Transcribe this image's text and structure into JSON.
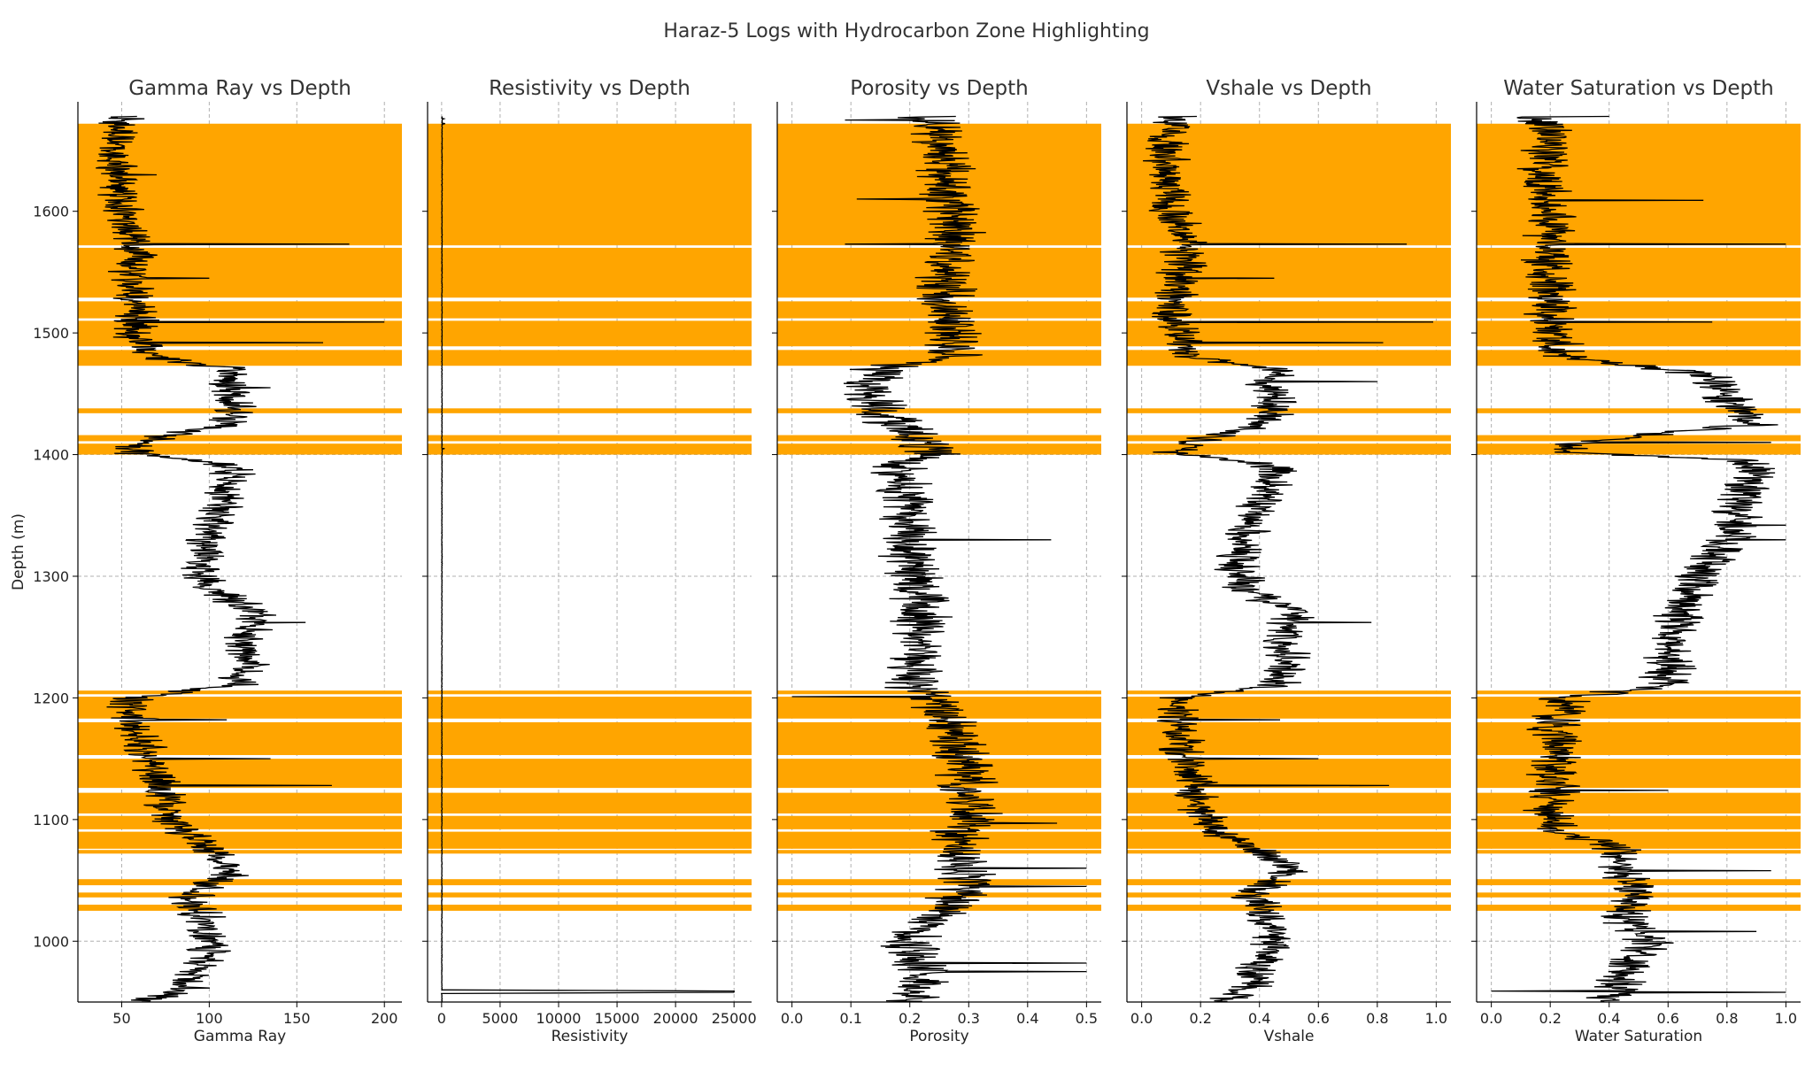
{
  "chart_data": {
    "type": "line",
    "title": "Haraz-5 Logs with Hydrocarbon Zone Highlighting",
    "ylabel": "Depth (m)",
    "ylim": [
      950,
      1690
    ],
    "yticks": [
      1000,
      1100,
      1200,
      1300,
      1400,
      1500,
      1600
    ],
    "highlight_color": "#FFA500",
    "line_color": "#000000",
    "grid": true,
    "hydrocarbon_zones": [
      [
        1572,
        1672
      ],
      [
        1529,
        1570
      ],
      [
        1512,
        1526
      ],
      [
        1489,
        1510
      ],
      [
        1473,
        1486
      ],
      [
        1434,
        1438
      ],
      [
        1411,
        1416
      ],
      [
        1400,
        1409
      ],
      [
        1203,
        1206
      ],
      [
        1183,
        1201
      ],
      [
        1153,
        1180
      ],
      [
        1126,
        1150
      ],
      [
        1105,
        1122
      ],
      [
        1092,
        1103
      ],
      [
        1076,
        1090
      ],
      [
        1072,
        1075
      ],
      [
        1046,
        1051
      ],
      [
        1036,
        1040
      ],
      [
        1025,
        1030
      ]
    ],
    "panels": [
      {
        "title": "Gamma Ray vs Depth",
        "xlabel": "Gamma Ray",
        "xlim": [
          25,
          210
        ],
        "xticks": [
          50,
          100,
          150,
          200
        ],
        "xtick_labels": [
          "50",
          "100",
          "150",
          "200"
        ],
        "profile": [
          [
            950,
            60
          ],
          [
            960,
            85
          ],
          [
            980,
            95
          ],
          [
            1000,
            100
          ],
          [
            1020,
            95
          ],
          [
            1040,
            90
          ],
          [
            1060,
            115
          ],
          [
            1075,
            100
          ],
          [
            1090,
            85
          ],
          [
            1110,
            75
          ],
          [
            1130,
            72
          ],
          [
            1150,
            65
          ],
          [
            1175,
            58
          ],
          [
            1200,
            55
          ],
          [
            1210,
            115
          ],
          [
            1230,
            125
          ],
          [
            1250,
            120
          ],
          [
            1270,
            130
          ],
          [
            1290,
            100
          ],
          [
            1310,
            95
          ],
          [
            1330,
            100
          ],
          [
            1350,
            105
          ],
          [
            1370,
            110
          ],
          [
            1390,
            115
          ],
          [
            1402,
            55
          ],
          [
            1410,
            60
          ],
          [
            1425,
            110
          ],
          [
            1440,
            115
          ],
          [
            1455,
            110
          ],
          [
            1470,
            115
          ],
          [
            1480,
            70
          ],
          [
            1500,
            55
          ],
          [
            1520,
            60
          ],
          [
            1540,
            55
          ],
          [
            1570,
            60
          ],
          [
            1600,
            50
          ],
          [
            1640,
            45
          ],
          [
            1670,
            50
          ],
          [
            1678,
            55
          ]
        ],
        "noise": 10,
        "spikes": [
          [
            1573,
            180
          ],
          [
            1509,
            200
          ],
          [
            1492,
            165
          ],
          [
            1182,
            110
          ],
          [
            1150,
            135
          ],
          [
            1128,
            170
          ],
          [
            1630,
            70
          ],
          [
            1545,
            100
          ],
          [
            1455,
            135
          ],
          [
            1262,
            155
          ]
        ]
      },
      {
        "title": "Resistivity vs Depth",
        "xlabel": "Resistivity",
        "xlim": [
          -1200,
          26500
        ],
        "xticks": [
          0,
          5000,
          10000,
          15000,
          20000,
          25000
        ],
        "xtick_labels": [
          "0",
          "5000",
          "10000",
          "15000",
          "20000",
          "25000"
        ],
        "profile": [
          [
            950,
            20
          ],
          [
            957,
            20
          ],
          [
            958,
            25000
          ],
          [
            959,
            25000
          ],
          [
            960,
            20
          ],
          [
            1200,
            20
          ],
          [
            1400,
            30
          ],
          [
            1600,
            30
          ],
          [
            1680,
            40
          ]
        ],
        "noise": 20,
        "spikes": [
          [
            1672,
            300
          ],
          [
            1676,
            200
          ],
          [
            1405,
            250
          ]
        ]
      },
      {
        "title": "Porosity vs Depth",
        "xlabel": "Porosity",
        "xlim": [
          -0.025,
          0.525
        ],
        "xticks": [
          0.0,
          0.1,
          0.2,
          0.3,
          0.4,
          0.5
        ],
        "xtick_labels": [
          "0.0",
          "0.1",
          "0.2",
          "0.3",
          "0.4",
          "0.5"
        ],
        "profile": [
          [
            950,
            0.2
          ],
          [
            980,
            0.22
          ],
          [
            1000,
            0.2
          ],
          [
            1030,
            0.26
          ],
          [
            1050,
            0.3
          ],
          [
            1080,
            0.28
          ],
          [
            1100,
            0.3
          ],
          [
            1130,
            0.3
          ],
          [
            1160,
            0.28
          ],
          [
            1190,
            0.26
          ],
          [
            1200,
            0.24
          ],
          [
            1210,
            0.2
          ],
          [
            1240,
            0.22
          ],
          [
            1270,
            0.22
          ],
          [
            1300,
            0.21
          ],
          [
            1330,
            0.2
          ],
          [
            1360,
            0.2
          ],
          [
            1390,
            0.18
          ],
          [
            1402,
            0.24
          ],
          [
            1420,
            0.19
          ],
          [
            1440,
            0.14
          ],
          [
            1460,
            0.13
          ],
          [
            1472,
            0.15
          ],
          [
            1480,
            0.27
          ],
          [
            1500,
            0.27
          ],
          [
            1520,
            0.26
          ],
          [
            1550,
            0.26
          ],
          [
            1575,
            0.28
          ],
          [
            1600,
            0.27
          ],
          [
            1640,
            0.26
          ],
          [
            1670,
            0.25
          ],
          [
            1678,
            0.23
          ]
        ],
        "noise": 0.04,
        "spikes": [
          [
            1201,
            0.0
          ],
          [
            1573,
            0.09
          ],
          [
            1610,
            0.11
          ],
          [
            1330,
            0.44
          ],
          [
            1060,
            0.5
          ],
          [
            1045,
            0.5
          ],
          [
            982,
            0.5
          ],
          [
            975,
            0.5
          ],
          [
            1097,
            0.45
          ],
          [
            1675,
            0.09
          ]
        ]
      },
      {
        "title": "Vshale vs Depth",
        "xlabel": "Vshale",
        "xlim": [
          -0.05,
          1.05
        ],
        "xticks": [
          0.0,
          0.2,
          0.4,
          0.6,
          0.8,
          1.0
        ],
        "xtick_labels": [
          "0.0",
          "0.2",
          "0.4",
          "0.6",
          "0.8",
          "1.0"
        ],
        "profile": [
          [
            950,
            0.25
          ],
          [
            960,
            0.35
          ],
          [
            980,
            0.4
          ],
          [
            1000,
            0.45
          ],
          [
            1020,
            0.42
          ],
          [
            1040,
            0.38
          ],
          [
            1060,
            0.5
          ],
          [
            1075,
            0.4
          ],
          [
            1090,
            0.25
          ],
          [
            1110,
            0.2
          ],
          [
            1130,
            0.18
          ],
          [
            1150,
            0.15
          ],
          [
            1175,
            0.12
          ],
          [
            1200,
            0.12
          ],
          [
            1210,
            0.45
          ],
          [
            1230,
            0.5
          ],
          [
            1250,
            0.48
          ],
          [
            1270,
            0.52
          ],
          [
            1290,
            0.35
          ],
          [
            1310,
            0.32
          ],
          [
            1330,
            0.35
          ],
          [
            1350,
            0.38
          ],
          [
            1370,
            0.42
          ],
          [
            1390,
            0.45
          ],
          [
            1402,
            0.12
          ],
          [
            1410,
            0.15
          ],
          [
            1425,
            0.42
          ],
          [
            1440,
            0.45
          ],
          [
            1455,
            0.42
          ],
          [
            1470,
            0.45
          ],
          [
            1480,
            0.18
          ],
          [
            1500,
            0.12
          ],
          [
            1520,
            0.12
          ],
          [
            1540,
            0.12
          ],
          [
            1570,
            0.15
          ],
          [
            1600,
            0.1
          ],
          [
            1640,
            0.08
          ],
          [
            1670,
            0.1
          ],
          [
            1678,
            0.12
          ]
        ],
        "noise": 0.06,
        "spikes": [
          [
            1573,
            0.9
          ],
          [
            1509,
            0.99
          ],
          [
            1492,
            0.82
          ],
          [
            1128,
            0.84
          ],
          [
            1150,
            0.6
          ],
          [
            1460,
            0.8
          ],
          [
            1262,
            0.78
          ],
          [
            1545,
            0.45
          ],
          [
            1182,
            0.47
          ]
        ]
      },
      {
        "title": "Water Saturation vs Depth",
        "xlabel": "Water Saturation",
        "xlim": [
          -0.05,
          1.05
        ],
        "xticks": [
          0.0,
          0.2,
          0.4,
          0.6,
          0.8,
          1.0
        ],
        "xtick_labels": [
          "0.0",
          "0.2",
          "0.4",
          "0.6",
          "0.8",
          "1.0"
        ],
        "profile": [
          [
            950,
            0.4
          ],
          [
            980,
            0.45
          ],
          [
            1000,
            0.55
          ],
          [
            1020,
            0.45
          ],
          [
            1040,
            0.5
          ],
          [
            1060,
            0.45
          ],
          [
            1080,
            0.4
          ],
          [
            1090,
            0.2
          ],
          [
            1110,
            0.2
          ],
          [
            1130,
            0.22
          ],
          [
            1150,
            0.22
          ],
          [
            1175,
            0.22
          ],
          [
            1200,
            0.25
          ],
          [
            1210,
            0.6
          ],
          [
            1240,
            0.6
          ],
          [
            1270,
            0.65
          ],
          [
            1300,
            0.7
          ],
          [
            1330,
            0.8
          ],
          [
            1360,
            0.85
          ],
          [
            1395,
            0.9
          ],
          [
            1402,
            0.25
          ],
          [
            1410,
            0.3
          ],
          [
            1425,
            0.9
          ],
          [
            1445,
            0.8
          ],
          [
            1465,
            0.75
          ],
          [
            1480,
            0.25
          ],
          [
            1500,
            0.2
          ],
          [
            1520,
            0.2
          ],
          [
            1540,
            0.2
          ],
          [
            1570,
            0.2
          ],
          [
            1600,
            0.2
          ],
          [
            1640,
            0.18
          ],
          [
            1670,
            0.2
          ],
          [
            1678,
            0.15
          ]
        ],
        "noise": 0.07,
        "spikes": [
          [
            959,
            0.0
          ],
          [
            958,
            1.0
          ],
          [
            1008,
            0.9
          ],
          [
            1573,
            1.0
          ],
          [
            1609,
            0.72
          ],
          [
            1509,
            0.75
          ],
          [
            1410,
            0.95
          ],
          [
            1330,
            1.0
          ],
          [
            1342,
            1.0
          ],
          [
            1124,
            0.6
          ],
          [
            1058,
            0.95
          ],
          [
            1678,
            0.4
          ]
        ]
      }
    ]
  }
}
